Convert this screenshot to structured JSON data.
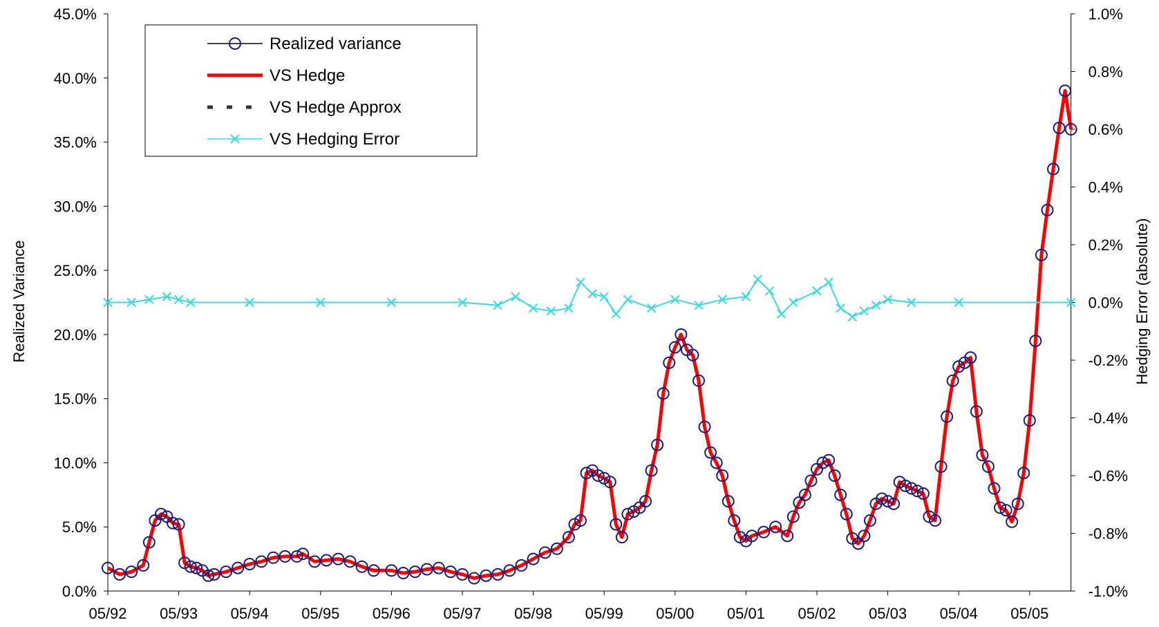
{
  "chart_data": {
    "type": "line",
    "title": "",
    "xlabel": "",
    "ylabel": "Realized Variance",
    "y2label": "Hedging Error (absolute)",
    "ylim": [
      0,
      45
    ],
    "y2lim": [
      -1.0,
      1.0
    ],
    "x_start": "05/92",
    "x_end": "12/05",
    "x_tick_labels": [
      "05/92",
      "05/93",
      "05/94",
      "05/95",
      "05/96",
      "05/97",
      "05/98",
      "05/99",
      "05/00",
      "05/01",
      "05/02",
      "05/03",
      "05/04",
      "05/05"
    ],
    "y_tick_labels": [
      "0.0%",
      "5.0%",
      "10.0%",
      "15.0%",
      "20.0%",
      "25.0%",
      "30.0%",
      "35.0%",
      "40.0%",
      "45.0%"
    ],
    "y2_tick_labels": [
      "-1.0%",
      "-0.8%",
      "-0.6%",
      "-0.4%",
      "-0.2%",
      "0.0%",
      "0.2%",
      "0.4%",
      "0.6%",
      "0.8%",
      "1.0%"
    ],
    "legend": {
      "placement": "top-left",
      "entries": [
        "Realized variance",
        "VS Hedge",
        "VS Hedge Approx",
        "VS Hedging Error"
      ]
    },
    "colors": {
      "realized_variance": "#1a1a7a",
      "vs_hedge": "#ff0000",
      "vs_hedge_approx": "#333333",
      "vs_hedging_error": "#33dddd"
    },
    "grid": false,
    "series": [
      {
        "name": "Realized variance",
        "axis": "left",
        "marker": "circle",
        "points": [
          [
            "05/92",
            1.8
          ],
          [
            "07/92",
            1.3
          ],
          [
            "09/92",
            1.5
          ],
          [
            "11/92",
            2.0
          ],
          [
            "12/92",
            3.8
          ],
          [
            "01/93",
            5.5
          ],
          [
            "02/93",
            6.0
          ],
          [
            "03/93",
            5.8
          ],
          [
            "04/93",
            5.3
          ],
          [
            "05/93",
            5.2
          ],
          [
            "06/93",
            2.2
          ],
          [
            "07/93",
            1.9
          ],
          [
            "08/93",
            1.8
          ],
          [
            "09/93",
            1.6
          ],
          [
            "10/93",
            1.2
          ],
          [
            "11/93",
            1.3
          ],
          [
            "01/94",
            1.5
          ],
          [
            "03/94",
            1.8
          ],
          [
            "05/94",
            2.1
          ],
          [
            "07/94",
            2.3
          ],
          [
            "09/94",
            2.6
          ],
          [
            "11/94",
            2.7
          ],
          [
            "01/95",
            2.7
          ],
          [
            "02/95",
            2.9
          ],
          [
            "04/95",
            2.3
          ],
          [
            "06/95",
            2.4
          ],
          [
            "08/95",
            2.5
          ],
          [
            "10/95",
            2.3
          ],
          [
            "12/95",
            1.9
          ],
          [
            "02/96",
            1.6
          ],
          [
            "05/96",
            1.6
          ],
          [
            "07/96",
            1.4
          ],
          [
            "09/96",
            1.5
          ],
          [
            "11/96",
            1.7
          ],
          [
            "01/97",
            1.8
          ],
          [
            "03/97",
            1.5
          ],
          [
            "05/97",
            1.3
          ],
          [
            "07/97",
            1.0
          ],
          [
            "09/97",
            1.2
          ],
          [
            "11/97",
            1.3
          ],
          [
            "01/98",
            1.6
          ],
          [
            "03/98",
            2.0
          ],
          [
            "05/98",
            2.5
          ],
          [
            "07/98",
            3.0
          ],
          [
            "09/98",
            3.3
          ],
          [
            "11/98",
            4.2
          ],
          [
            "12/98",
            5.2
          ],
          [
            "01/99",
            5.5
          ],
          [
            "02/99",
            9.2
          ],
          [
            "03/99",
            9.4
          ],
          [
            "04/99",
            9.0
          ],
          [
            "05/99",
            8.8
          ],
          [
            "06/99",
            8.5
          ],
          [
            "07/99",
            5.2
          ],
          [
            "08/99",
            4.2
          ],
          [
            "09/99",
            6.0
          ],
          [
            "10/99",
            6.2
          ],
          [
            "11/99",
            6.5
          ],
          [
            "12/99",
            7.0
          ],
          [
            "01/00",
            9.4
          ],
          [
            "02/00",
            11.4
          ],
          [
            "03/00",
            15.4
          ],
          [
            "04/00",
            17.8
          ],
          [
            "05/00",
            19.0
          ],
          [
            "06/00",
            20.0
          ],
          [
            "07/00",
            18.8
          ],
          [
            "08/00",
            18.4
          ],
          [
            "09/00",
            16.4
          ],
          [
            "10/00",
            12.8
          ],
          [
            "11/00",
            10.8
          ],
          [
            "12/00",
            10.0
          ],
          [
            "01/01",
            9.0
          ],
          [
            "02/01",
            7.0
          ],
          [
            "03/01",
            5.5
          ],
          [
            "04/01",
            4.2
          ],
          [
            "05/01",
            3.9
          ],
          [
            "06/01",
            4.3
          ],
          [
            "08/01",
            4.6
          ],
          [
            "10/01",
            5.0
          ],
          [
            "12/01",
            4.3
          ],
          [
            "01/02",
            5.8
          ],
          [
            "02/02",
            6.9
          ],
          [
            "03/02",
            7.5
          ],
          [
            "04/02",
            8.6
          ],
          [
            "05/02",
            9.5
          ],
          [
            "06/02",
            10.0
          ],
          [
            "07/02",
            10.2
          ],
          [
            "08/02",
            9.0
          ],
          [
            "09/02",
            7.5
          ],
          [
            "10/02",
            6.0
          ],
          [
            "11/02",
            4.1
          ],
          [
            "12/02",
            3.7
          ],
          [
            "01/03",
            4.3
          ],
          [
            "02/03",
            5.5
          ],
          [
            "03/03",
            6.8
          ],
          [
            "04/03",
            7.2
          ],
          [
            "05/03",
            7.0
          ],
          [
            "06/03",
            6.8
          ],
          [
            "07/03",
            8.5
          ],
          [
            "08/03",
            8.2
          ],
          [
            "09/03",
            8.0
          ],
          [
            "10/03",
            7.8
          ],
          [
            "11/03",
            7.6
          ],
          [
            "12/03",
            5.8
          ],
          [
            "01/04",
            5.5
          ],
          [
            "02/04",
            9.7
          ],
          [
            "03/04",
            13.6
          ],
          [
            "04/04",
            16.4
          ],
          [
            "05/04",
            17.5
          ],
          [
            "06/04",
            17.8
          ],
          [
            "07/04",
            18.2
          ],
          [
            "08/04",
            14.0
          ],
          [
            "09/04",
            10.6
          ],
          [
            "10/04",
            9.7
          ],
          [
            "11/04",
            8.0
          ],
          [
            "12/04",
            6.5
          ],
          [
            "01/05",
            6.3
          ],
          [
            "02/05",
            5.4
          ],
          [
            "03/05",
            6.8
          ],
          [
            "04/05",
            9.2
          ],
          [
            "05/05",
            13.3
          ],
          [
            "06/05",
            19.5
          ],
          [
            "07/05",
            26.2
          ],
          [
            "08/05",
            29.7
          ],
          [
            "09/05",
            32.9
          ],
          [
            "10/05",
            36.1
          ],
          [
            "11/05",
            39.0
          ],
          [
            "12/05",
            36.0
          ]
        ]
      },
      {
        "name": "VS Hedge",
        "axis": "left",
        "marker": "none"
      },
      {
        "name": "VS Hedge Approx",
        "axis": "left",
        "marker": "none"
      },
      {
        "name": "VS Hedging Error",
        "axis": "right",
        "marker": "x",
        "points": [
          [
            "05/92",
            0.0
          ],
          [
            "09/92",
            0.0
          ],
          [
            "12/92",
            0.01
          ],
          [
            "03/93",
            0.02
          ],
          [
            "05/93",
            0.01
          ],
          [
            "07/93",
            0.0
          ],
          [
            "05/94",
            0.0
          ],
          [
            "05/95",
            0.0
          ],
          [
            "05/96",
            0.0
          ],
          [
            "05/97",
            0.0
          ],
          [
            "11/97",
            -0.01
          ],
          [
            "02/98",
            0.02
          ],
          [
            "05/98",
            -0.02
          ],
          [
            "08/98",
            -0.03
          ],
          [
            "11/98",
            -0.02
          ],
          [
            "01/99",
            0.07
          ],
          [
            "03/99",
            0.03
          ],
          [
            "05/99",
            0.02
          ],
          [
            "07/99",
            -0.04
          ],
          [
            "09/99",
            0.01
          ],
          [
            "01/00",
            -0.02
          ],
          [
            "05/00",
            0.01
          ],
          [
            "09/00",
            -0.01
          ],
          [
            "01/01",
            0.01
          ],
          [
            "05/01",
            0.02
          ],
          [
            "07/01",
            0.08
          ],
          [
            "09/01",
            0.04
          ],
          [
            "11/01",
            -0.04
          ],
          [
            "01/02",
            0.0
          ],
          [
            "05/02",
            0.04
          ],
          [
            "07/02",
            0.07
          ],
          [
            "09/02",
            -0.02
          ],
          [
            "11/02",
            -0.05
          ],
          [
            "01/03",
            -0.03
          ],
          [
            "03/03",
            -0.01
          ],
          [
            "05/03",
            0.01
          ],
          [
            "09/03",
            0.0
          ],
          [
            "05/04",
            0.0
          ],
          [
            "12/05",
            0.0
          ]
        ]
      }
    ]
  }
}
